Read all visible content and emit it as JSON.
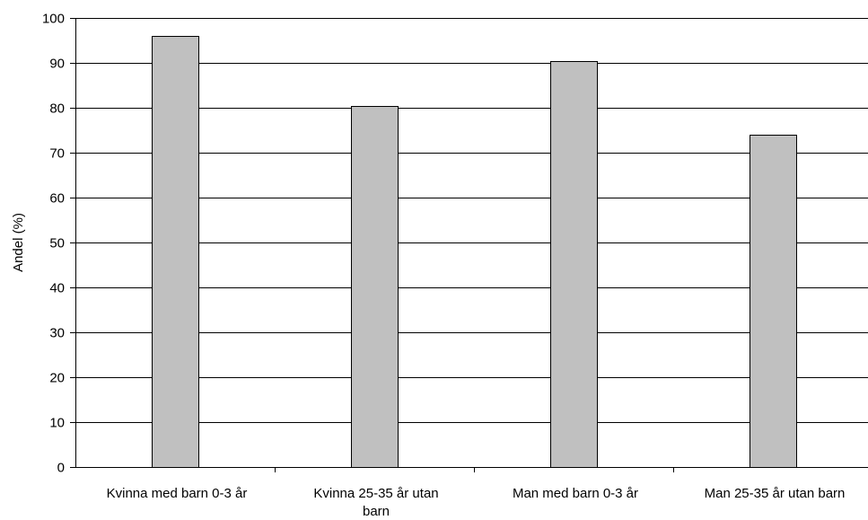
{
  "chart_data": {
    "type": "bar",
    "title": "",
    "xlabel": "",
    "ylabel": "Andel (%)",
    "ylim": [
      0,
      100
    ],
    "yticks": [
      0,
      10,
      20,
      30,
      40,
      50,
      60,
      70,
      80,
      90,
      100
    ],
    "grid": true,
    "legend": "none",
    "categories": [
      [
        "Kvinna med barn 0-3 år"
      ],
      [
        "Kvinna 25-35 år utan",
        "barn"
      ],
      [
        "Man med barn 0-3 år"
      ],
      [
        "Man 25-35 år utan barn"
      ]
    ],
    "values": [
      96,
      80.5,
      90.5,
      74
    ],
    "colors": {
      "bar_fill": "#c0c0c0",
      "bar_stroke": "#000000",
      "gridline": "#000000",
      "axis": "#000000"
    }
  }
}
